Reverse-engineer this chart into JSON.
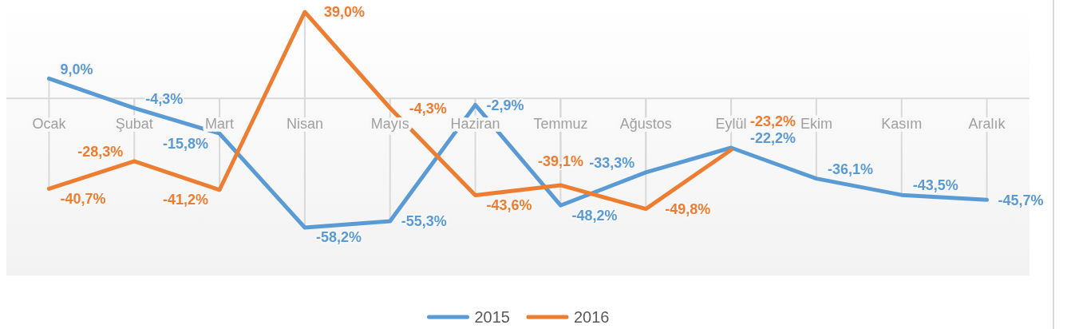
{
  "chart_data": {
    "type": "line",
    "categories": [
      "Ocak",
      "Şubat",
      "Mart",
      "Nisan",
      "Mayıs",
      "Haziran",
      "Temmuz",
      "Ağustos",
      "Eylül",
      "Ekim",
      "Kasım",
      "Aralık"
    ],
    "series": [
      {
        "name": "2015",
        "color": "#5b9bd5",
        "values": [
          9.0,
          -4.3,
          -15.8,
          -58.2,
          -55.3,
          -2.9,
          -48.2,
          -33.3,
          -22.2,
          -36.1,
          -43.5,
          -45.7
        ],
        "value_labels": [
          "9,0%",
          "-4,3%",
          "-15,8%",
          "-58,2%",
          "-55,3%",
          "-2,9%",
          "-48,2%",
          "-33,3%",
          "-22,2%",
          "-36,1%",
          "-43,5%",
          "-45,7%"
        ]
      },
      {
        "name": "2016",
        "color": "#ed7d31",
        "values": [
          -40.7,
          -28.3,
          -41.2,
          39.0,
          -4.3,
          -43.6,
          -39.1,
          -49.8,
          -23.2,
          null,
          null,
          null
        ],
        "value_labels": [
          "-40,7%",
          "-28,3%",
          "-41,2%",
          "39,0%",
          "-4,3%",
          "-43,6%",
          "-39,1%",
          "-49,8%",
          "-23,2%",
          null,
          null,
          null
        ]
      }
    ],
    "grid": "x",
    "legend": "bottom"
  }
}
